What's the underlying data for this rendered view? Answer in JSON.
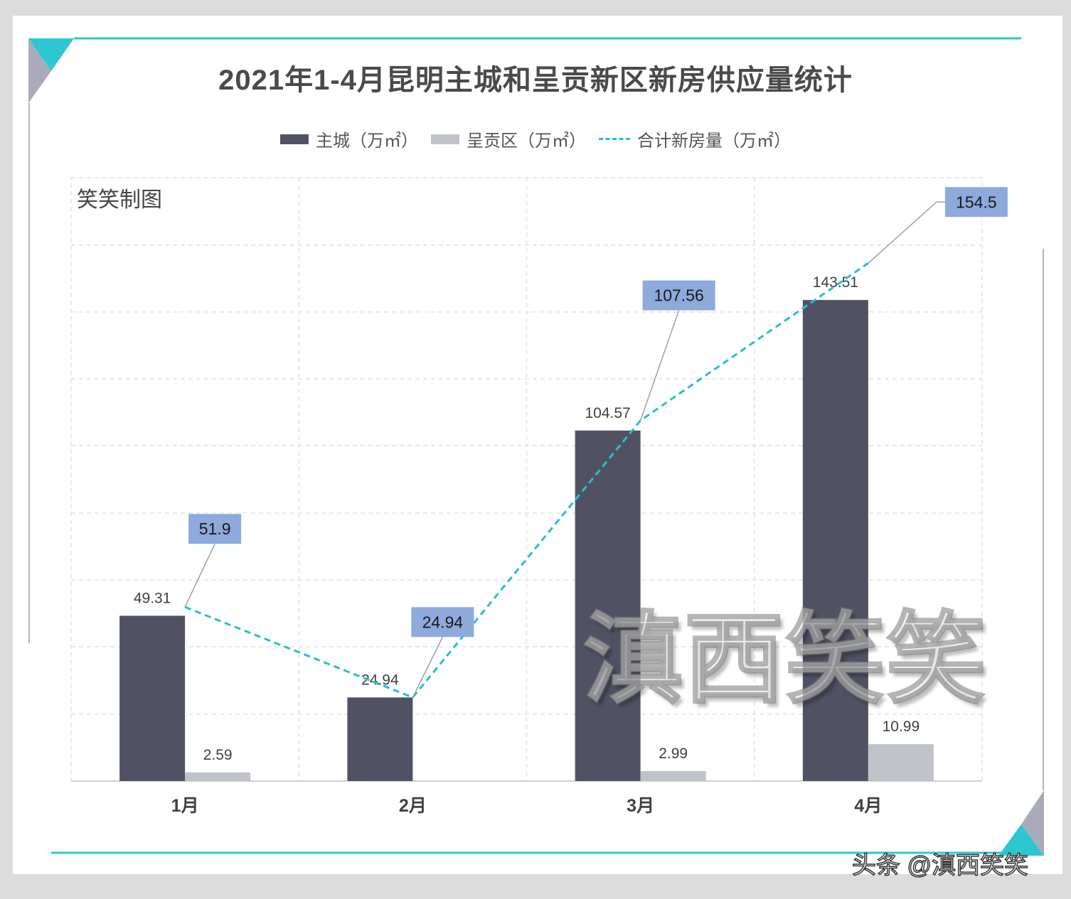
{
  "title": "2021年1-4月昆明主城和呈贡新区新房供应量统计",
  "watermark_corner": "笑笑制图",
  "watermark_center": "滇西笑笑",
  "footer_credit": "头条 @滇西笑笑",
  "colors": {
    "main": "#505264",
    "chenggong": "#c0c2ca",
    "total_line": "#26bfcf",
    "total_label_bg": "#8ea9db",
    "accent": "#2cc7d1"
  },
  "chart_data": {
    "type": "bar",
    "categories": [
      "1月",
      "2月",
      "3月",
      "4月"
    ],
    "series": [
      {
        "name": "主城（万㎡）",
        "kind": "bar",
        "values": [
          49.31,
          24.94,
          104.57,
          143.51
        ],
        "labels": [
          "49.31",
          "24.94",
          "104.57",
          "143.51"
        ]
      },
      {
        "name": "呈贡区（万㎡）",
        "kind": "bar",
        "values": [
          2.59,
          0,
          2.99,
          10.99
        ],
        "labels": [
          "2.59",
          "",
          "2.99",
          "10.99"
        ]
      },
      {
        "name": "合计新房量（万㎡）",
        "kind": "line",
        "style": "dashed",
        "values": [
          51.9,
          24.94,
          107.56,
          154.5
        ],
        "labels": [
          "51.9",
          "24.94",
          "107.56",
          "154.5"
        ]
      }
    ],
    "ylim": [
      0,
      180
    ],
    "grid": true,
    "legend": "top-center"
  }
}
